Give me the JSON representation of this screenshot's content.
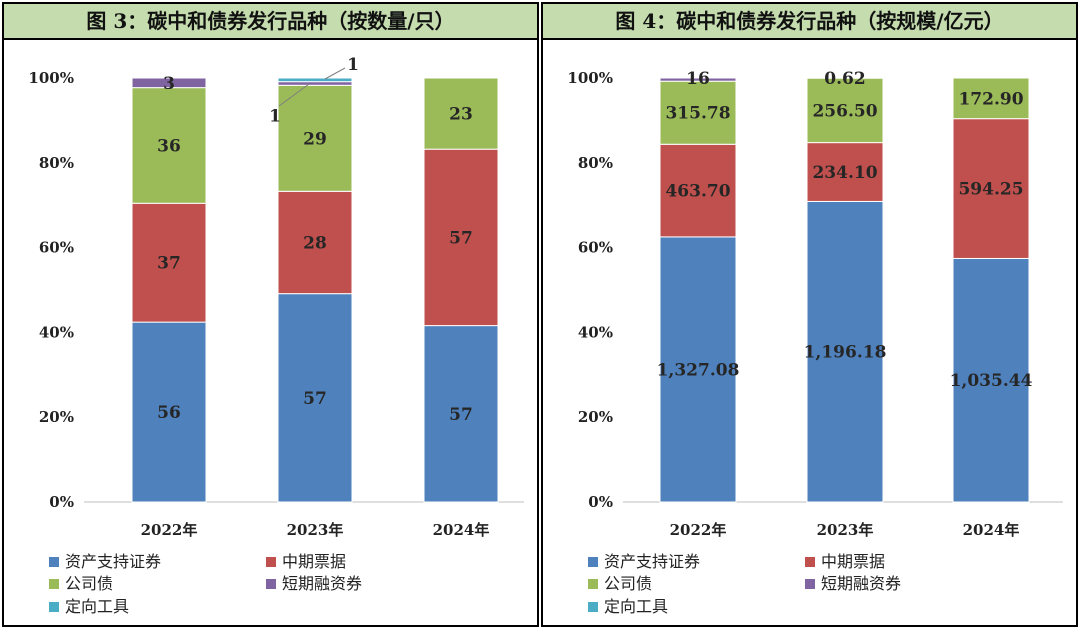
{
  "colors": {
    "资产支持证券": "#4f81bd",
    "中期票据": "#c0504d",
    "公司债": "#9bbb59",
    "短期融资券": "#8064a2",
    "定向工具": "#4bacc6",
    "title_bg": "#c4dcae"
  },
  "chart_data": [
    {
      "type": "bar",
      "stacked": "percent",
      "title": "图 3：碳中和债券发行品种（按数量/只）",
      "categories": [
        "2022年",
        "2023年",
        "2024年"
      ],
      "yticks": [
        "0%",
        "20%",
        "40%",
        "60%",
        "80%",
        "100%"
      ],
      "ylim": [
        0,
        100
      ],
      "legend_position": "bottom",
      "series": [
        {
          "name": "资产支持证券",
          "values": [
            56,
            57,
            57
          ],
          "labels": [
            "56",
            "57",
            "57"
          ]
        },
        {
          "name": "中期票据",
          "values": [
            37,
            28,
            57
          ],
          "labels": [
            "37",
            "28",
            "57"
          ]
        },
        {
          "name": "公司债",
          "values": [
            36,
            29,
            23
          ],
          "labels": [
            "36",
            "29",
            "23"
          ]
        },
        {
          "name": "短期融资券",
          "values": [
            3,
            1,
            0
          ],
          "labels": [
            "3",
            "1",
            ""
          ]
        },
        {
          "name": "定向工具",
          "values": [
            0,
            1,
            0
          ],
          "labels": [
            "",
            "1",
            ""
          ]
        }
      ]
    },
    {
      "type": "bar",
      "stacked": "percent",
      "title": "图 4：碳中和债券发行品种（按规模/亿元）",
      "categories": [
        "2022年",
        "2023年",
        "2024年"
      ],
      "yticks": [
        "0%",
        "20%",
        "40%",
        "60%",
        "80%",
        "100%"
      ],
      "ylim": [
        0,
        100
      ],
      "legend_position": "bottom",
      "series": [
        {
          "name": "资产支持证券",
          "values": [
            1327.08,
            1196.18,
            1035.44
          ],
          "labels": [
            "1,327.08",
            "1,196.18",
            "1,035.44"
          ]
        },
        {
          "name": "中期票据",
          "values": [
            463.7,
            234.1,
            594.25
          ],
          "labels": [
            "463.70",
            "234.10",
            "594.25"
          ]
        },
        {
          "name": "公司债",
          "values": [
            315.78,
            256.5,
            172.9
          ],
          "labels": [
            "315.78",
            "256.50",
            "172.90"
          ]
        },
        {
          "name": "短期融资券",
          "values": [
            16,
            0.62,
            0
          ],
          "labels": [
            "16",
            "0.62",
            ""
          ]
        },
        {
          "name": "定向工具",
          "values": [
            0,
            0,
            0
          ],
          "labels": [
            "",
            "",
            ""
          ]
        }
      ]
    }
  ]
}
